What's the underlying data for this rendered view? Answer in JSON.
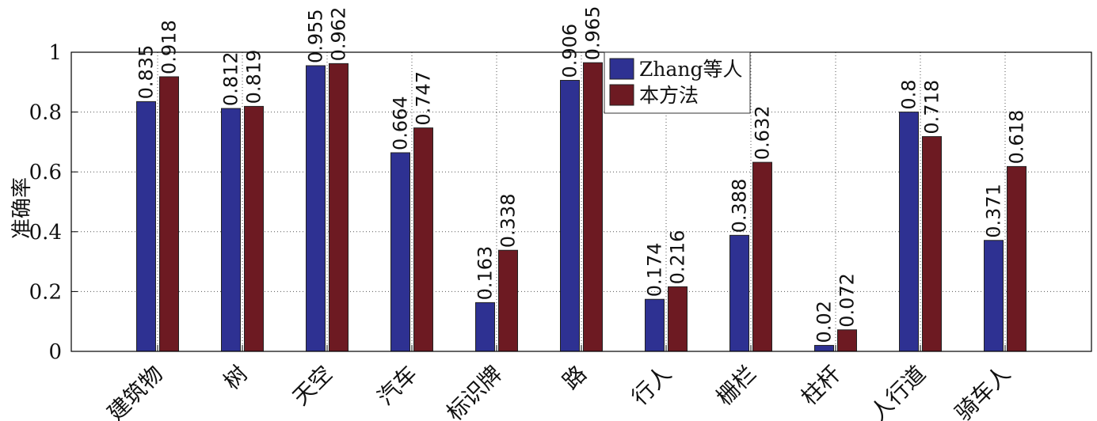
{
  "chart_data": {
    "type": "bar",
    "title": "",
    "xlabel": "",
    "ylabel": "准确率",
    "ylim": [
      0,
      1
    ],
    "yticks": [
      "0",
      "0.2",
      "0.4",
      "0.6",
      "0.8",
      "1"
    ],
    "grid": true,
    "legend_position": "top-center",
    "categories": [
      "建筑物",
      "树",
      "天空",
      "汽车",
      "标识牌",
      "路",
      "行人",
      "栅栏",
      "柱杆",
      "人行道",
      "骑车人"
    ],
    "series": [
      {
        "name": "Zhang等人",
        "color": "#2e3192",
        "values": [
          0.835,
          0.812,
          0.955,
          0.664,
          0.163,
          0.906,
          0.174,
          0.388,
          0.02,
          0.8,
          0.371
        ],
        "labels": [
          "0.835",
          "0.812",
          "0.955",
          "0.664",
          "0.163",
          "0.906",
          "0.174",
          "0.388",
          "0.02",
          "0.8",
          "0.371"
        ]
      },
      {
        "name": "本方法",
        "color": "#6d1a22",
        "values": [
          0.918,
          0.819,
          0.962,
          0.747,
          0.338,
          0.965,
          0.216,
          0.632,
          0.072,
          0.718,
          0.618
        ],
        "labels": [
          "0.918",
          "0.819",
          "0.962",
          "0.747",
          "0.338",
          "0.965",
          "0.216",
          "0.632",
          "0.072",
          "0.718",
          "0.618"
        ]
      }
    ]
  }
}
